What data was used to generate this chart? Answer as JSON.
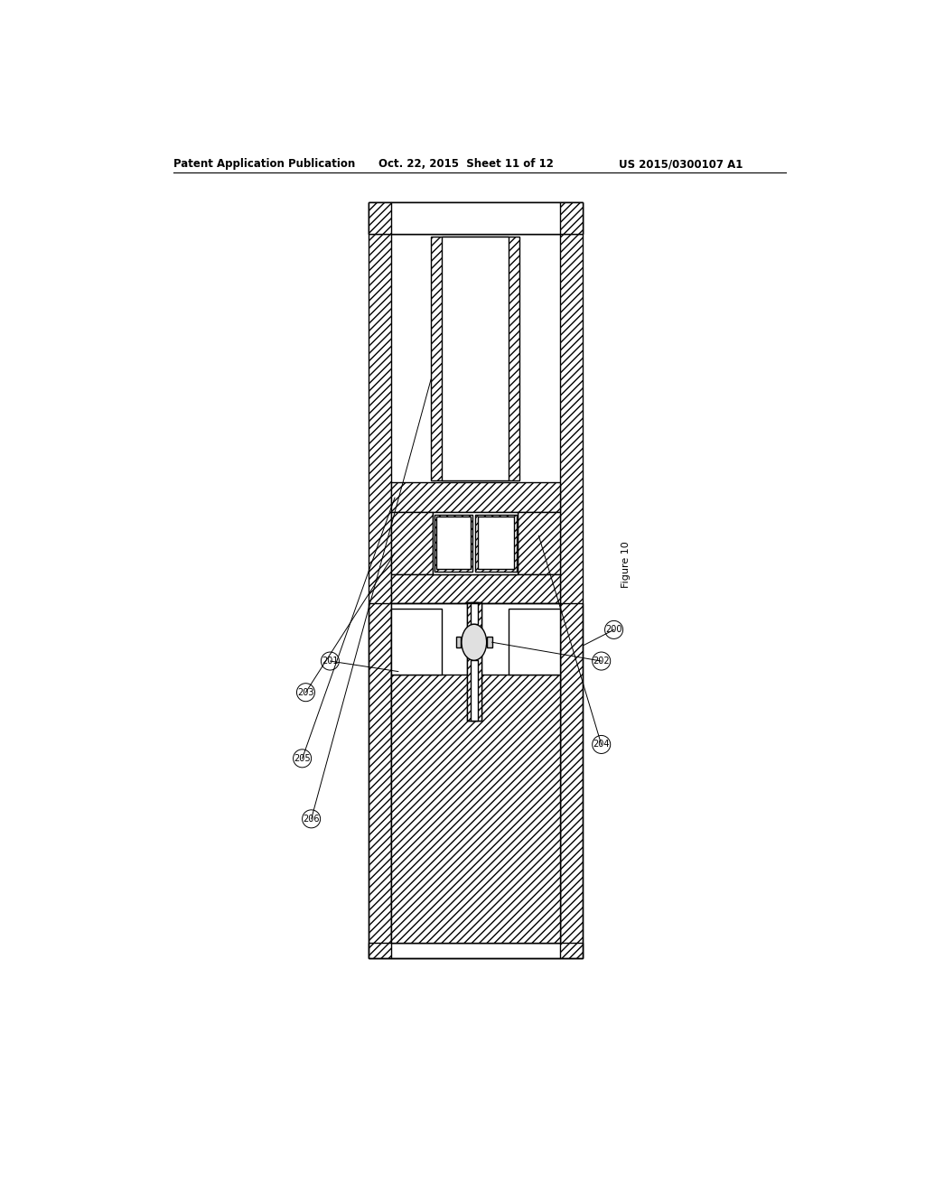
{
  "title_left": "Patent Application Publication",
  "title_center": "Oct. 22, 2015  Sheet 11 of 12",
  "title_right": "US 2015/0300107 A1",
  "figure_label": "Figure 10",
  "bg_color": "#ffffff",
  "line_color": "#000000",
  "labels": [
    "200",
    "201",
    "202",
    "203",
    "204",
    "205",
    "206"
  ],
  "label_font_size": 8
}
